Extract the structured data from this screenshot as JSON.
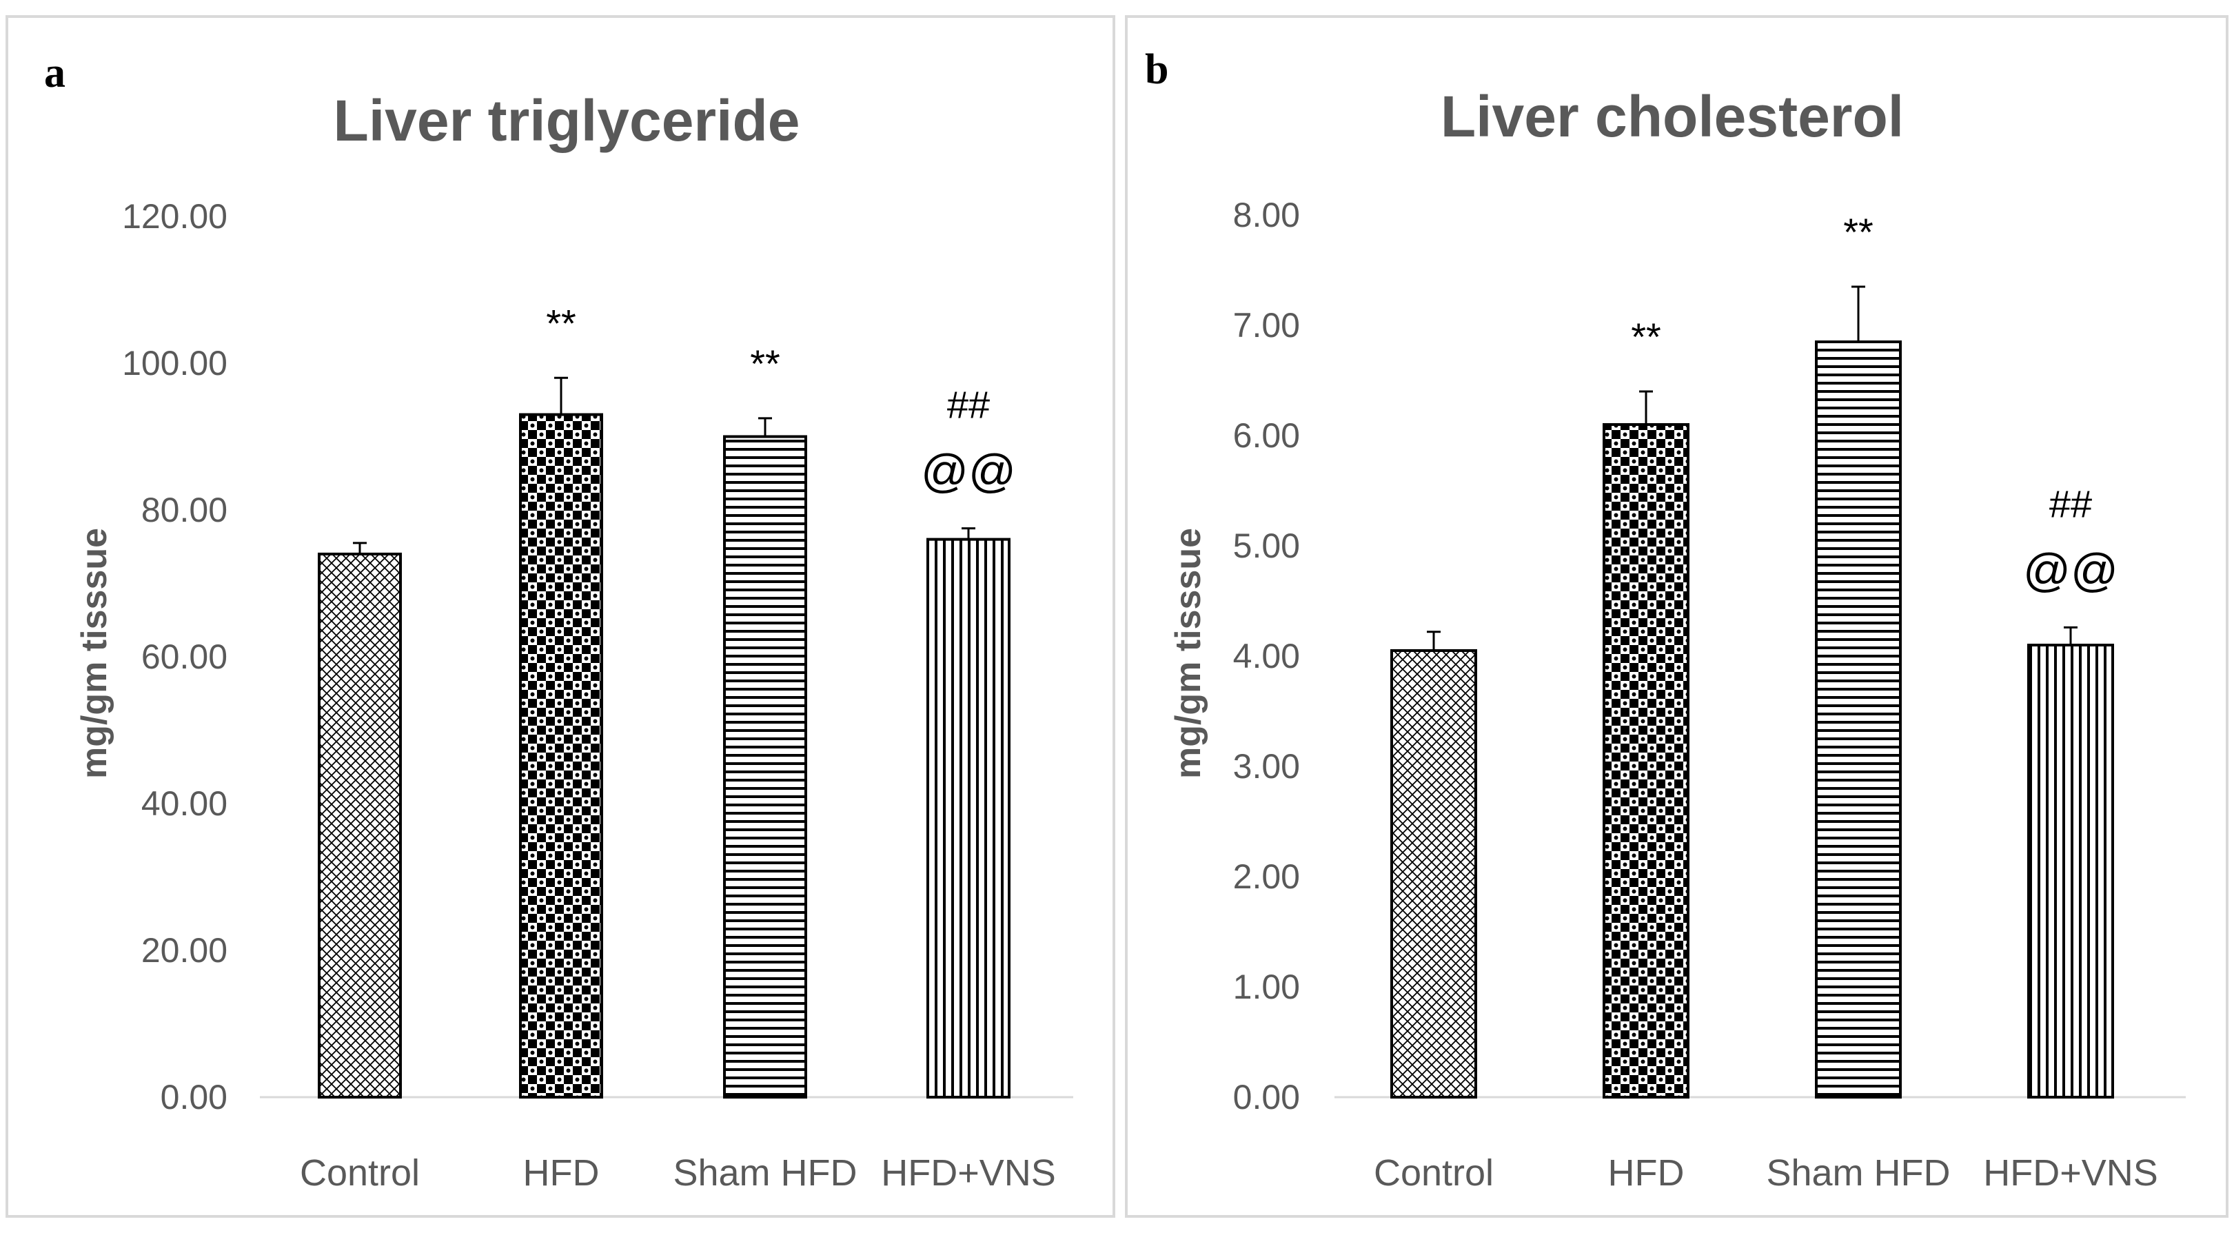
{
  "chart_data": [
    {
      "type": "bar",
      "panel_label": "a",
      "title": "Liver triglyceride",
      "ylabel": "mg/gm tisssue",
      "xlabel": "",
      "categories": [
        "Control",
        "HFD",
        "Sham HFD",
        "HFD+VNS"
      ],
      "values": [
        74.0,
        93.0,
        90.0,
        76.0
      ],
      "errors": [
        1.5,
        5.0,
        2.5,
        1.5
      ],
      "ylim": [
        0,
        120
      ],
      "yticks": [
        "0.00",
        "20.00",
        "40.00",
        "60.00",
        "80.00",
        "100.00",
        "120.00"
      ],
      "grid": false,
      "annotations": [
        {
          "category": "HFD",
          "lines": [
            "**"
          ]
        },
        {
          "category": "Sham HFD",
          "lines": [
            "**"
          ]
        },
        {
          "category": "HFD+VNS",
          "lines": [
            "##",
            "@@"
          ]
        }
      ]
    },
    {
      "type": "bar",
      "panel_label": "b",
      "title": "Liver cholesterol",
      "ylabel": "mg/gm tisssue",
      "xlabel": "",
      "categories": [
        "Control",
        "HFD",
        "Sham HFD",
        "HFD+VNS"
      ],
      "values": [
        4.05,
        6.1,
        6.85,
        4.1
      ],
      "errors": [
        0.17,
        0.3,
        0.5,
        0.16
      ],
      "ylim": [
        0,
        8
      ],
      "yticks": [
        "0.00",
        "1.00",
        "2.00",
        "3.00",
        "4.00",
        "5.00",
        "6.00",
        "7.00",
        "8.00"
      ],
      "grid": false,
      "annotations": [
        {
          "category": "HFD",
          "lines": [
            "**"
          ]
        },
        {
          "category": "Sham HFD",
          "lines": [
            "**"
          ]
        },
        {
          "category": "HFD+VNS",
          "lines": [
            "##",
            "@@"
          ]
        }
      ]
    }
  ],
  "colors": {
    "bar_stroke": "#000000",
    "axis": "#d9d9d9",
    "text": "#595959",
    "pattern_ink": "#000000",
    "panel_border": "#d9d9d9"
  }
}
